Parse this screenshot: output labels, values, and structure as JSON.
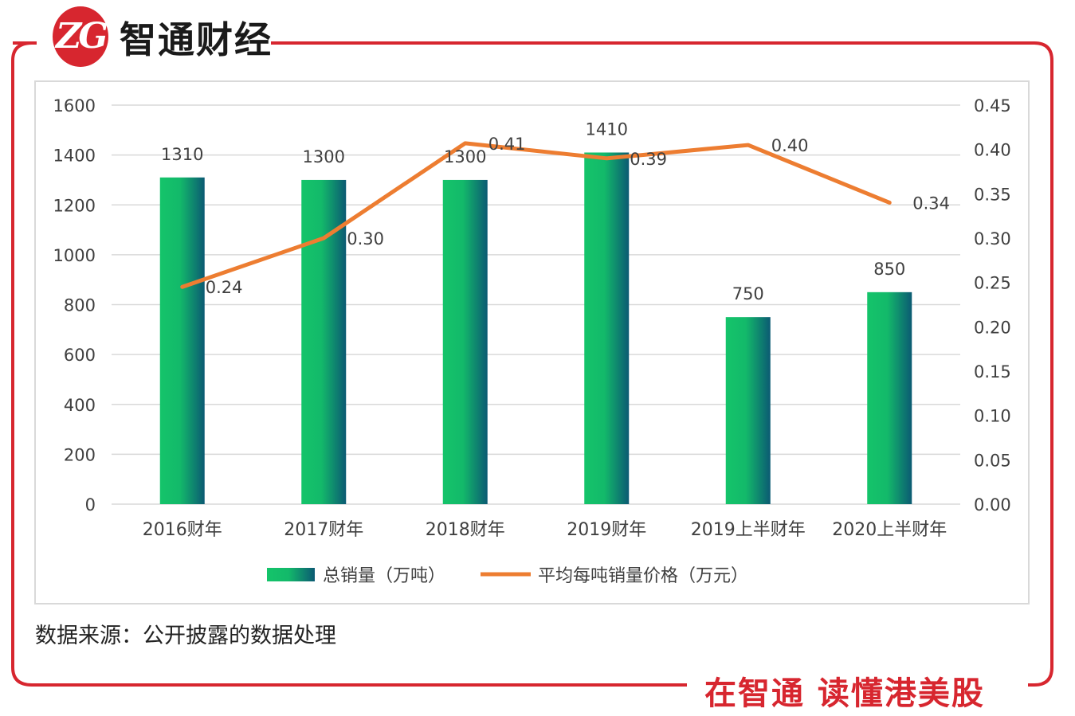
{
  "brand": {
    "logo_text": "ZG",
    "name": "智通财经",
    "slogan": "在智通 读懂港美股",
    "accent": "#d7262f"
  },
  "source_note": "数据来源：公开披露的数据处理",
  "colors": {
    "bar_start": "#14c46a",
    "bar_end": "#0b5a73",
    "line": "#ed7d31",
    "grid": "#d9d9d9"
  },
  "chart_data": {
    "type": "bar",
    "categories": [
      "2016财年",
      "2017财年",
      "2018财年",
      "2019财年",
      "2019上半财年",
      "2020上半财年"
    ],
    "series": [
      {
        "name": "总销量（万吨）",
        "type": "bar",
        "axis": "left",
        "values": [
          1310,
          1300,
          1300,
          1410,
          750,
          850
        ],
        "labels": [
          "1310",
          "1300",
          "1300",
          "1410",
          "750",
          "850"
        ]
      },
      {
        "name": "平均每吨销量价格（万元）",
        "type": "line",
        "axis": "right",
        "values": [
          0.245,
          0.3,
          0.407,
          0.39,
          0.405,
          0.34
        ],
        "labels": [
          "0.24",
          "0.30",
          "0.41",
          "0.39",
          "0.40",
          "0.34"
        ]
      }
    ],
    "y_left": {
      "min": 0,
      "max": 1600,
      "ticks": [
        "0",
        "200",
        "400",
        "600",
        "800",
        "1000",
        "1200",
        "1400",
        "1600"
      ]
    },
    "y_right": {
      "min": 0,
      "max": 0.45,
      "ticks": [
        "0.00",
        "0.05",
        "0.10",
        "0.15",
        "0.20",
        "0.25",
        "0.30",
        "0.35",
        "0.40",
        "0.45"
      ]
    },
    "grid": true,
    "legend": "bottom"
  }
}
